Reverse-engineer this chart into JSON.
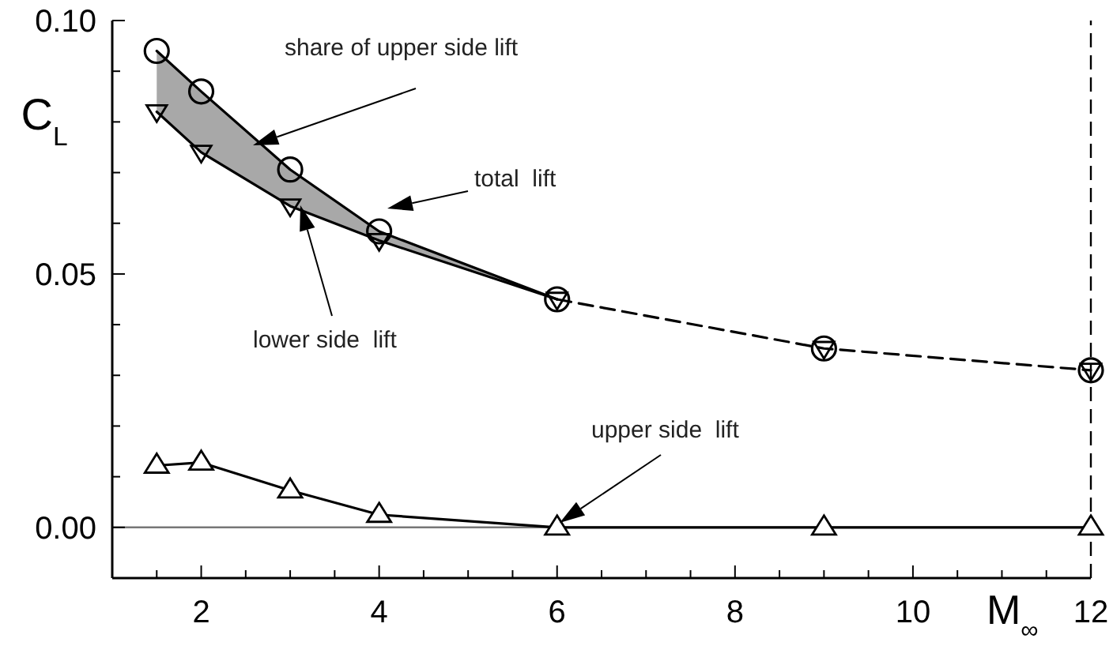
{
  "chart_data": {
    "type": "line",
    "xlabel": "M$_{∞}$",
    "ylabel": "C$_{L}$",
    "xlim": [
      1,
      12
    ],
    "ylim": [
      -0.01,
      0.1
    ],
    "xticks": [
      {
        "value": 1.5,
        "label": null
      },
      2,
      {
        "value": 2.5,
        "label": null
      },
      {
        "value": 3,
        "label": null
      },
      {
        "value": 3.5,
        "label": null
      },
      4,
      {
        "value": 4.5,
        "label": null
      },
      {
        "value": 5,
        "label": null
      },
      {
        "value": 5.5,
        "label": null
      },
      6,
      {
        "value": 6.5,
        "label": null
      },
      {
        "value": 7,
        "label": null
      },
      {
        "value": 7.5,
        "label": null
      },
      8,
      {
        "value": 8.5,
        "label": null
      },
      {
        "value": 9,
        "label": null
      },
      {
        "value": 9.5,
        "label": null
      },
      10,
      {
        "value": 10.5,
        "label": null
      },
      {
        "value": 11,
        "label": null
      },
      {
        "value": 11.5,
        "label": null
      },
      12
    ],
    "yticks": [
      {
        "value": 0,
        "label": "0.00"
      },
      {
        "value": 0.01,
        "label": null
      },
      {
        "value": 0.02,
        "label": null
      },
      {
        "value": 0.03,
        "label": null
      },
      {
        "value": 0.04,
        "label": null
      },
      {
        "value": 0.05,
        "label": "0.05"
      },
      {
        "value": 0.06,
        "label": null
      },
      {
        "value": 0.07,
        "label": null
      },
      {
        "value": 0.08,
        "label": null
      },
      {
        "value": 0.09,
        "label": null
      },
      {
        "value": 0.1,
        "label": "0.10"
      }
    ],
    "series": [
      {
        "color": "#000000",
        "marker": "none",
        "line_style": "solid",
        "x": [
          1.5,
          2,
          3,
          4,
          6
        ],
        "values": [
          0.094,
          0.086,
          0.0706,
          0.0584,
          0.045
        ],
        "lower": [
          0.082,
          0.074,
          0.0634,
          0.0566,
          0.045
        ],
        "upper": [
          0.094,
          0.086,
          0.0706,
          0.0584,
          0.045
        ]
      },
      {
        "type": "line",
        "color": "#000000",
        "marker": "none",
        "line_style": "solid",
        "x": [
          1.5,
          2,
          3,
          4,
          6
        ],
        "values": [
          0.082,
          0.074,
          0.0634,
          0.0566,
          0.045
        ]
      },
      {
        "type": "line",
        "color": "#000000",
        "marker": "none",
        "line_style": "dashed",
        "x": [
          6,
          9,
          12
        ],
        "values": [
          0.045,
          0.0353,
          0.031
        ]
      },
      {
        "type": "scatter",
        "color": "#000000",
        "marker": "circle",
        "x": [
          1.5,
          2,
          3,
          4,
          6,
          9,
          12
        ],
        "values": [
          0.094,
          0.086,
          0.0706,
          0.0584,
          0.045,
          0.0353,
          0.031
        ]
      },
      {
        "type": "scatter",
        "color": "#000000",
        "marker": "triangle-down",
        "x": [
          1.5,
          2,
          3,
          4,
          6,
          9,
          12
        ],
        "values": [
          0.082,
          0.074,
          0.0634,
          0.0566,
          0.045,
          0.0353,
          0.031
        ]
      },
      {
        "type": "line",
        "color": "#000000",
        "marker": "triangle",
        "line_style": "solid",
        "x": [
          1.5,
          2,
          3,
          4,
          6,
          9,
          12
        ],
        "values": [
          0.0122,
          0.0128,
          0.0073,
          0.0025,
          0,
          0,
          0
        ]
      }
    ],
    "ref_lines": [
      {
        "axis": "y",
        "value": 0,
        "color": "#777777",
        "line_style": "solid"
      },
      {
        "axis": "x",
        "value": 12,
        "color": "#000000",
        "line_style": "dashed"
      }
    ],
    "annotations": [
      "share of upper side lift",
      "total  lift",
      "lower side  lift",
      "upper side  lift"
    ]
  }
}
